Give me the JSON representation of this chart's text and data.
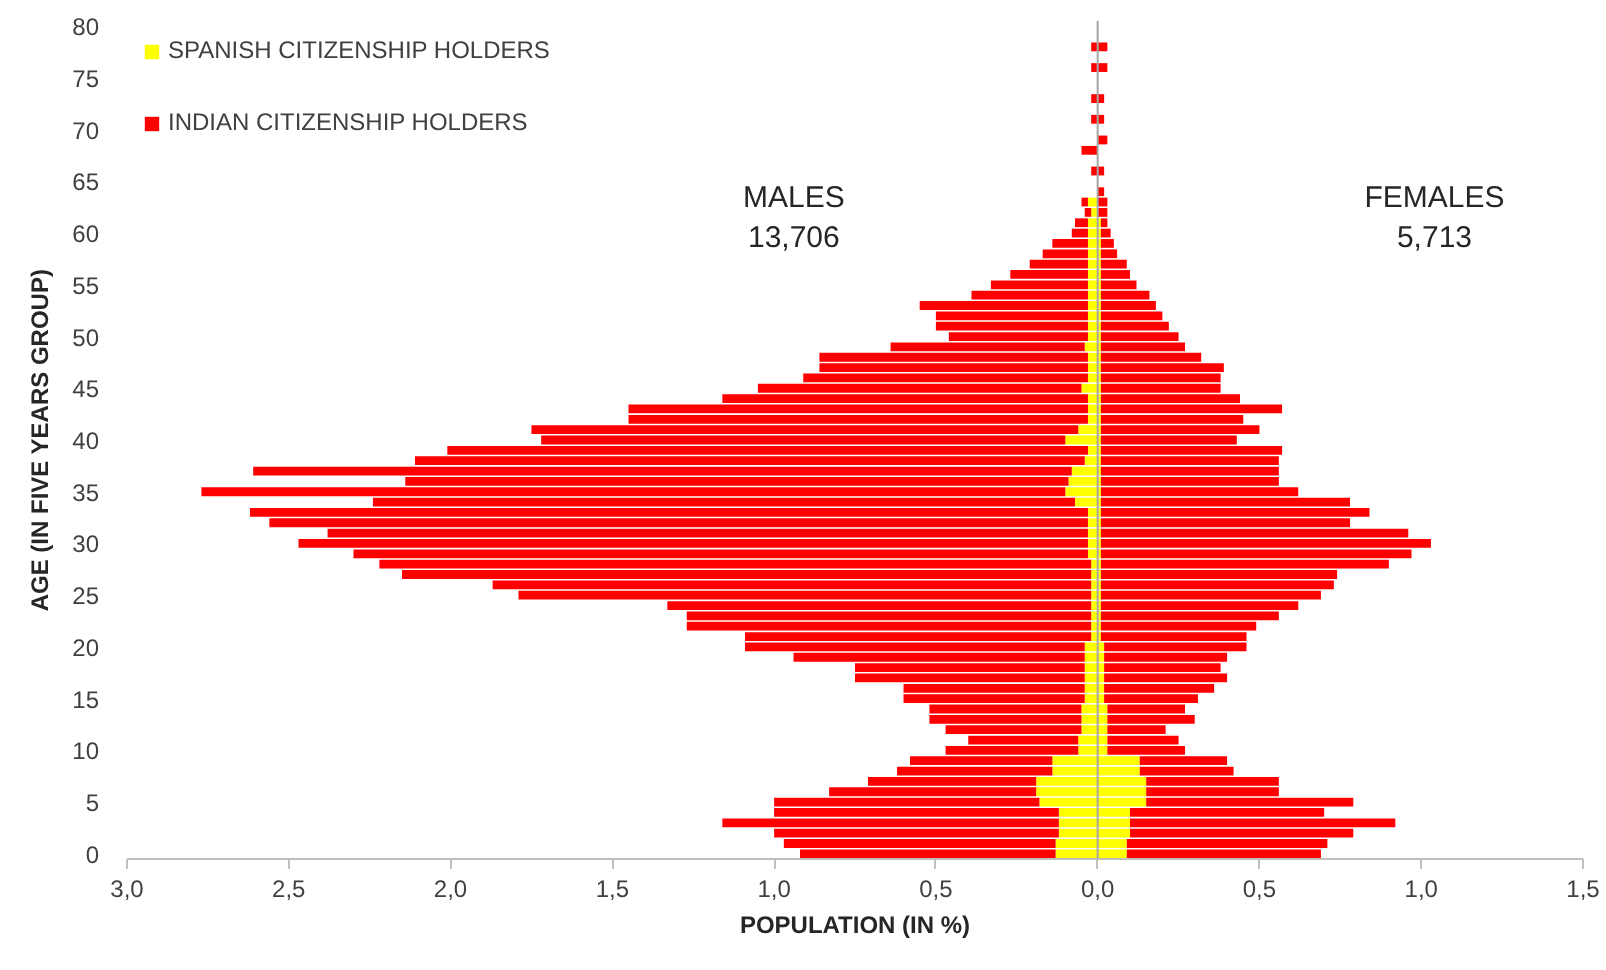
{
  "chart_data": {
    "type": "bar",
    "orientation": "horizontal",
    "stacked": true,
    "xlabel": "POPULATION (IN %)",
    "ylabel": "AGE (IN FIVE YEARS GROUP)",
    "annotations": [
      "MALES\n13,706",
      "FEMALES\n5,713"
    ],
    "categories": [
      "80",
      null,
      null,
      null,
      null,
      "75",
      null,
      null,
      null,
      null,
      "70",
      null,
      null,
      null,
      null,
      "65",
      null,
      null,
      null,
      null,
      "60",
      null,
      null,
      null,
      null,
      "55",
      null,
      null,
      null,
      null,
      "50",
      null,
      null,
      null,
      null,
      "45",
      null,
      null,
      null,
      null,
      "40",
      null,
      null,
      null,
      null,
      "35",
      null,
      null,
      null,
      null,
      "30",
      null,
      null,
      null,
      null,
      "25",
      null,
      null,
      null,
      null,
      "20",
      null,
      null,
      null,
      null,
      "15",
      null,
      null,
      null,
      null,
      "10",
      null,
      null,
      null,
      null,
      "5",
      null,
      null,
      null,
      null,
      "0"
    ],
    "series": [
      {
        "name": "SPANISH CITIZENSHIP HOLDERS",
        "color": "#ffff00",
        "values": [
          null,
          null,
          null,
          null,
          null,
          null,
          null,
          null,
          null,
          null,
          null,
          null,
          null,
          null,
          null,
          null,
          null,
          -0.03,
          -0.02,
          -0.03,
          -0.03,
          -0.03,
          -0.03,
          -0.03,
          -0.03,
          -0.03,
          -0.03,
          -0.03,
          -0.03,
          -0.03,
          -0.03,
          -0.04,
          -0.03,
          -0.03,
          -0.03,
          -0.05,
          -0.03,
          -0.03,
          -0.03,
          -0.06,
          -0.1,
          -0.03,
          -0.04,
          -0.08,
          -0.09,
          -0.1,
          -0.07,
          -0.03,
          -0.03,
          -0.03,
          -0.03,
          -0.03,
          -0.02,
          -0.02,
          -0.02,
          -0.02,
          -0.02,
          -0.02,
          -0.02,
          -0.02,
          -0.04,
          -0.04,
          -0.04,
          -0.04,
          -0.04,
          -0.04,
          -0.05,
          -0.05,
          -0.05,
          -0.06,
          -0.06,
          -0.14,
          -0.14,
          -0.19,
          -0.19,
          -0.18,
          -0.12,
          -0.12,
          -0.12,
          -0.13,
          -0.13
        ]
      },
      {
        "name": "INDIAN CITIZENSHIP HOLDERS",
        "color": "#ff0000",
        "values": [
          null,
          null,
          -0.02,
          null,
          -0.02,
          null,
          null,
          -0.02,
          null,
          -0.02,
          null,
          null,
          -0.05,
          null,
          -0.02,
          null,
          null,
          -0.02,
          -0.02,
          -0.04,
          -0.05,
          -0.11,
          -0.14,
          -0.18,
          -0.24,
          -0.3,
          -0.36,
          -0.52,
          -0.47,
          -0.47,
          -0.43,
          -0.6,
          -0.83,
          -0.83,
          -0.88,
          -1.0,
          -1.13,
          -1.42,
          -1.42,
          -1.69,
          -1.62,
          -1.98,
          -2.07,
          -2.53,
          -2.05,
          -2.67,
          -2.17,
          -2.59,
          -2.53,
          -2.35,
          -2.44,
          -2.27,
          -2.2,
          -2.13,
          -1.85,
          -1.77,
          -1.31,
          -1.25,
          -1.25,
          -1.07,
          -1.05,
          -0.9,
          -0.71,
          -0.71,
          -0.56,
          -0.56,
          -0.47,
          -0.47,
          -0.42,
          -0.34,
          -0.41,
          -0.44,
          -0.48,
          -0.52,
          -0.64,
          -0.82,
          -0.88,
          -1.04,
          -0.88,
          -0.84,
          -0.79
        ]
      },
      {
        "color": "#ffff00",
        "values": [
          null,
          null,
          null,
          null,
          null,
          null,
          null,
          null,
          null,
          null,
          null,
          null,
          null,
          null,
          null,
          null,
          null,
          null,
          null,
          0.01,
          0.01,
          0.01,
          0.01,
          0.01,
          0.01,
          0.01,
          0.01,
          0.01,
          0.01,
          0.01,
          0.01,
          0.01,
          0.01,
          0.01,
          0.01,
          0.01,
          0.01,
          0.01,
          0.01,
          0.01,
          0.01,
          0.01,
          0.01,
          0.01,
          0.01,
          0.01,
          0.01,
          0.01,
          0.01,
          0.01,
          0.01,
          0.01,
          0.01,
          0.01,
          0.01,
          0.01,
          0.01,
          0.01,
          0.01,
          0.01,
          0.02,
          0.02,
          0.02,
          0.02,
          0.02,
          0.02,
          0.03,
          0.03,
          0.03,
          0.03,
          0.03,
          0.13,
          0.13,
          0.15,
          0.15,
          0.15,
          0.1,
          0.1,
          0.1,
          0.09,
          0.09
        ]
      },
      {
        "color": "#ff0000",
        "values": [
          null,
          null,
          0.03,
          null,
          0.03,
          null,
          null,
          0.02,
          null,
          0.02,
          null,
          0.03,
          null,
          null,
          0.02,
          null,
          0.02,
          0.03,
          0.03,
          0.02,
          0.03,
          0.04,
          0.05,
          0.08,
          0.09,
          0.11,
          0.15,
          0.17,
          0.19,
          0.21,
          0.24,
          0.26,
          0.31,
          0.38,
          0.37,
          0.37,
          0.43,
          0.56,
          0.44,
          0.49,
          0.42,
          0.56,
          0.55,
          0.55,
          0.55,
          0.61,
          0.77,
          0.83,
          0.77,
          0.95,
          1.02,
          0.96,
          0.89,
          0.73,
          0.72,
          0.68,
          0.61,
          0.55,
          0.48,
          0.45,
          0.44,
          0.38,
          0.36,
          0.38,
          0.34,
          0.29,
          0.24,
          0.27,
          0.18,
          0.22,
          0.24,
          0.27,
          0.29,
          0.41,
          0.41,
          0.64,
          0.6,
          0.82,
          0.69,
          0.62,
          0.6
        ]
      }
    ],
    "xlim": [
      -3,
      1.5
    ],
    "xticks": [
      {
        "value": -3,
        "label": "3,0"
      },
      {
        "value": -2.5,
        "label": "2,5"
      },
      {
        "value": -2,
        "label": "2,0"
      },
      {
        "value": -1.5,
        "label": "1,5"
      },
      {
        "value": -1,
        "label": "1,0"
      },
      {
        "value": -0.5,
        "label": "0,5"
      },
      {
        "value": 0,
        "label": "0,0"
      },
      {
        "value": 0.5,
        "label": "0,5"
      },
      {
        "value": 1,
        "label": "1,0"
      },
      {
        "value": 1.5,
        "label": "1,5"
      }
    ],
    "ref_lines": [
      {
        "axis": "x",
        "value": 0,
        "color": "#a6a6a6"
      }
    ],
    "grid": false,
    "legend": "top left"
  }
}
